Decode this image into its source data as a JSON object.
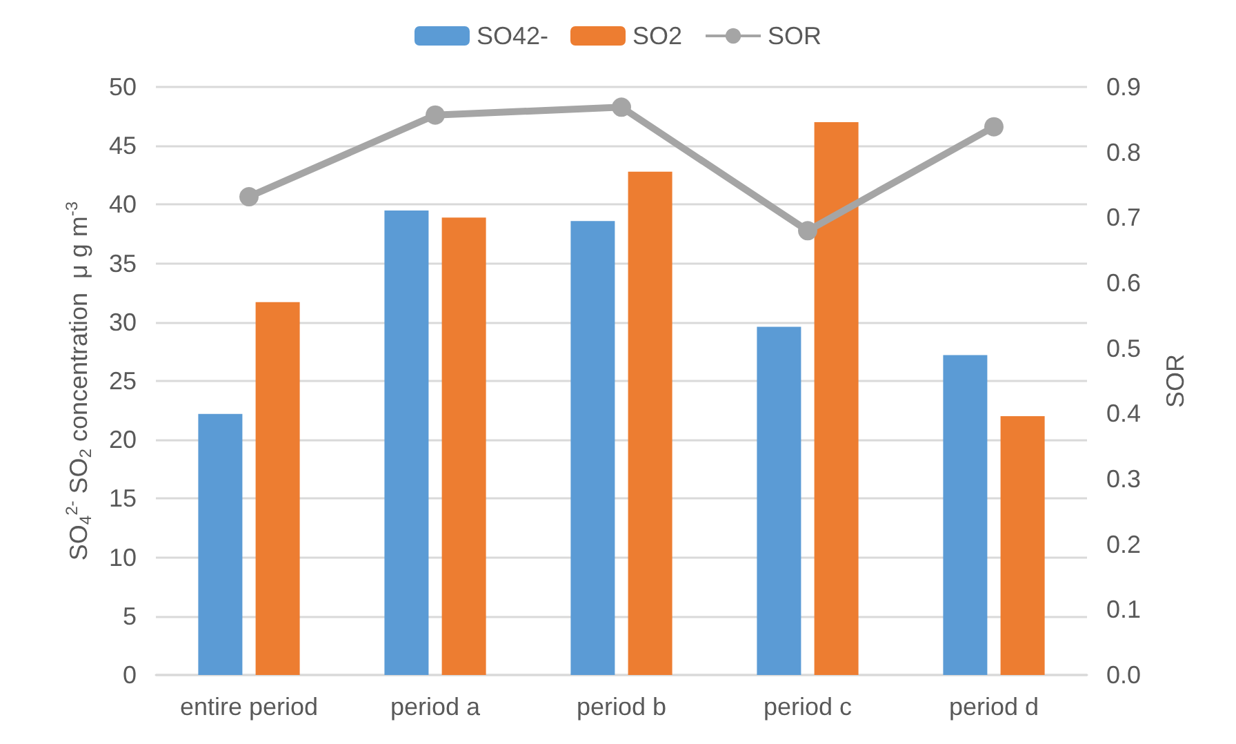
{
  "chart_data": {
    "type": "bar",
    "categories": [
      "entire period",
      "period a",
      "period b",
      "period c",
      "period d"
    ],
    "series": [
      {
        "name": "SO42-",
        "color": "#5b9bd5",
        "values": [
          22.2,
          39.5,
          38.6,
          29.6,
          27.2
        ]
      },
      {
        "name": "SO2",
        "color": "#ed7d31",
        "values": [
          31.7,
          38.9,
          42.8,
          47.0,
          22.0
        ]
      },
      {
        "name": "SOR",
        "type": "line",
        "axis": "y2",
        "color": "#a5a5a5",
        "marker": "circle",
        "values": [
          0.732,
          0.857,
          0.869,
          0.68,
          0.839
        ]
      }
    ],
    "ylabel": "SO$_{4}$$^{2-}$ SO$_{2}$ concentration  μ g m$^{-3}$",
    "y2label": "SOR",
    "ylim": [
      0,
      50
    ],
    "yticks": [
      0,
      5,
      10,
      15,
      20,
      25,
      30,
      35,
      40,
      45,
      50
    ],
    "y2lim": [
      0,
      0.9
    ],
    "y2ticks": [
      {
        "value": 0,
        "label": "0.0"
      },
      {
        "value": 0.1,
        "label": "0.1"
      },
      {
        "value": 0.2,
        "label": "0.2"
      },
      {
        "value": 0.3,
        "label": "0.3"
      },
      {
        "value": 0.4,
        "label": "0.4"
      },
      {
        "value": 0.5,
        "label": "0.5"
      },
      {
        "value": 0.6,
        "label": "0.6"
      },
      {
        "value": 0.7,
        "label": "0.7"
      },
      {
        "value": 0.8,
        "label": "0.8"
      },
      {
        "value": 0.9,
        "label": "0.9"
      }
    ],
    "grid": "y",
    "legend": "top"
  }
}
